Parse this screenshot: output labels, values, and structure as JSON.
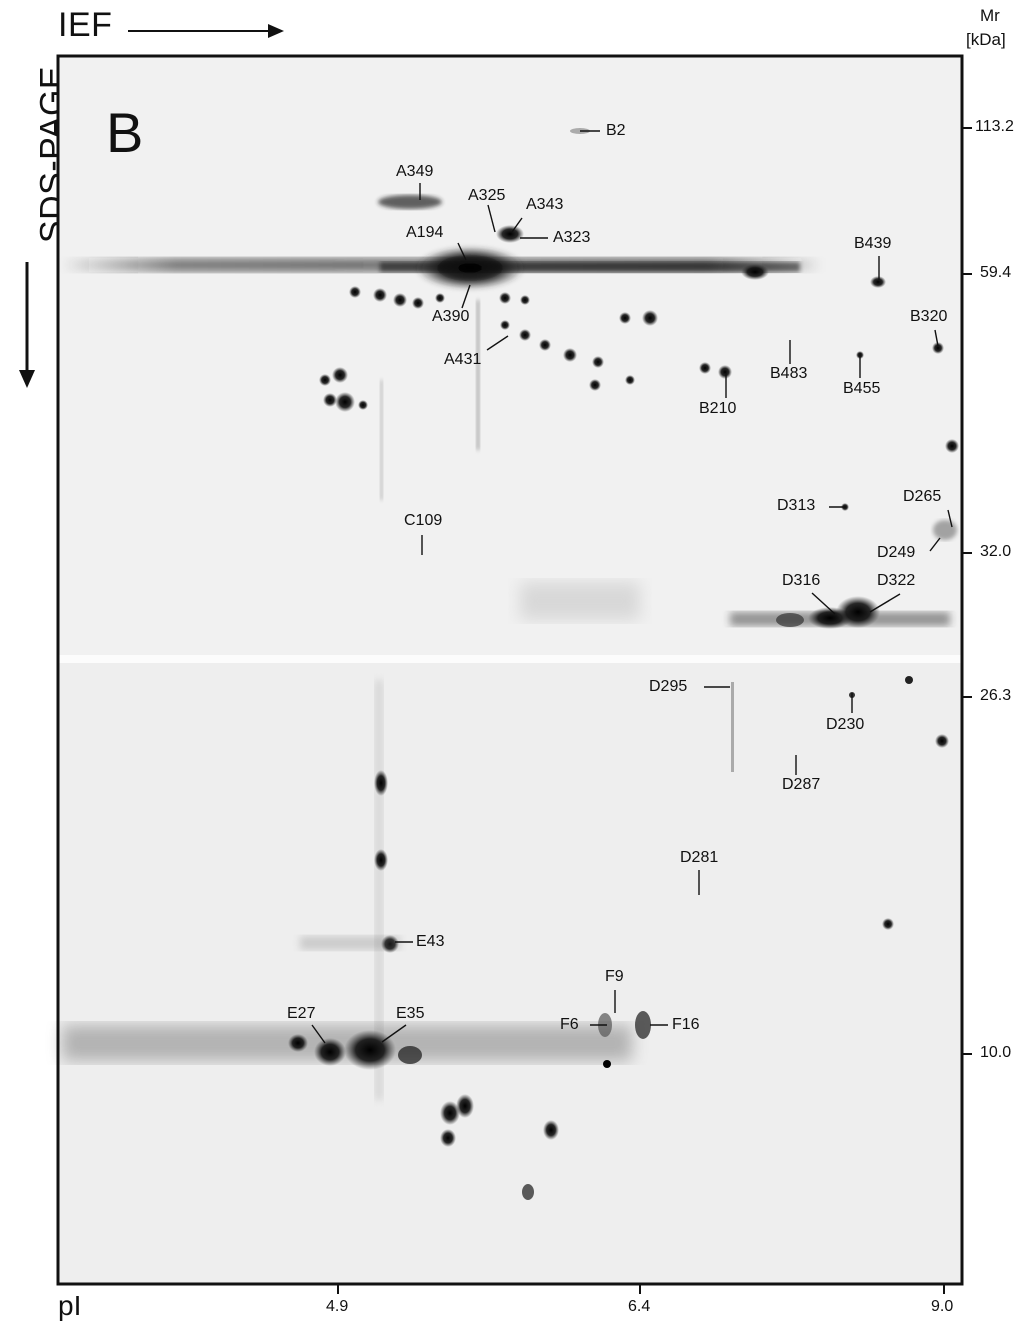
{
  "header": {
    "ief_label": "IEF",
    "sds_label": "SDS-PAGE",
    "panel_letter": "B",
    "mr_label": "Mr",
    "mr_unit": "[kDa]",
    "pi_label": "pI"
  },
  "mw_ticks": [
    {
      "value": "113.2"
    },
    {
      "value": "59.4"
    },
    {
      "value": "32.0"
    },
    {
      "value": "26.3"
    },
    {
      "value": "10.0"
    }
  ],
  "pi_ticks": [
    {
      "value": "4.9"
    },
    {
      "value": "6.4"
    },
    {
      "value": "9.0"
    }
  ],
  "spot_labels": [
    {
      "id": "B2"
    },
    {
      "id": "A349"
    },
    {
      "id": "A325"
    },
    {
      "id": "A343"
    },
    {
      "id": "A194"
    },
    {
      "id": "A323"
    },
    {
      "id": "B439"
    },
    {
      "id": "A390"
    },
    {
      "id": "B320"
    },
    {
      "id": "A431"
    },
    {
      "id": "B483"
    },
    {
      "id": "B455"
    },
    {
      "id": "B210"
    },
    {
      "id": "D313"
    },
    {
      "id": "D265"
    },
    {
      "id": "C109"
    },
    {
      "id": "D249"
    },
    {
      "id": "D316"
    },
    {
      "id": "D322"
    },
    {
      "id": "D295"
    },
    {
      "id": "D230"
    },
    {
      "id": "D287"
    },
    {
      "id": "D281"
    },
    {
      "id": "E43"
    },
    {
      "id": "F9"
    },
    {
      "id": "E27"
    },
    {
      "id": "E35"
    },
    {
      "id": "F6"
    },
    {
      "id": "F16"
    }
  ]
}
